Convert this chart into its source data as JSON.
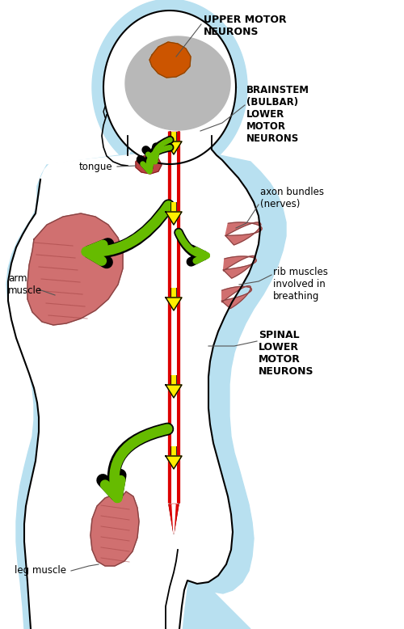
{
  "bg_color": "#ffffff",
  "glow_color": "#b8e0f0",
  "brain_color": "#b8b8b8",
  "motor_cortex_color": "#cc5500",
  "muscle_color": "#c86060",
  "muscle_fill": "#d07070",
  "spine_red": "#dd0000",
  "arrow_green": "#66bb00",
  "arrow_yellow": "#ffee00",
  "label_font_size": 8.5,
  "bold_font_size": 9,
  "labels": {
    "upper_motor": "UPPER MOTOR\nNEURONS",
    "brainstem": "BRAINSTEM\n(BULBAR)\nLOWER\nMOTOR\nNEURONS",
    "tongue": "tongue",
    "arm_muscle": "arm\nmuscle",
    "axon_bundles": "axon bundles\n(nerves)",
    "rib_muscles": "rib muscles\ninvolved in\nbreathing",
    "spinal_lower": "SPINAL\nLOWER\nMOTOR\nNEURONS",
    "leg_muscle": "leg muscle"
  }
}
